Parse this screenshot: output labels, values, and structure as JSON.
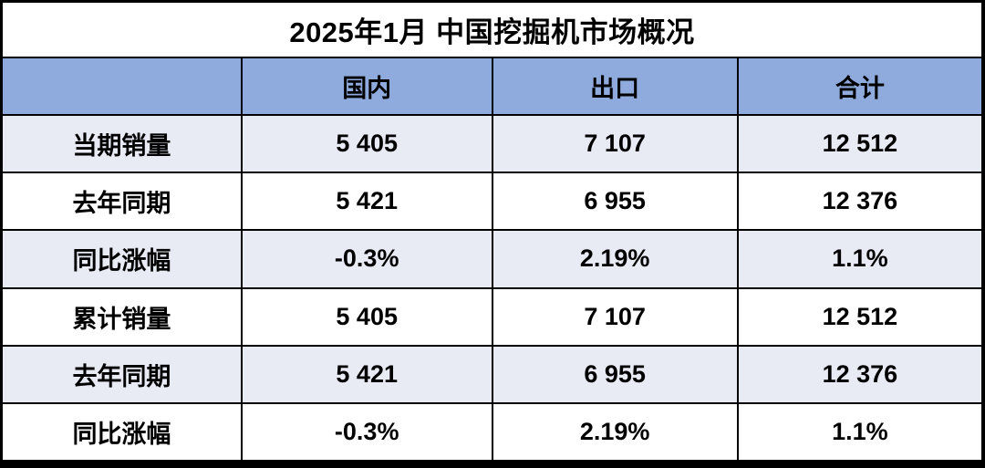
{
  "table": {
    "title": "2025年1月 中国挖掘机市场概况",
    "columns": [
      "国内",
      "出口",
      "合计"
    ],
    "rows": [
      {
        "label": "当期销量",
        "domestic": "5 405",
        "export": "7 107",
        "total": "12 512"
      },
      {
        "label": "去年同期",
        "domestic": "5 421",
        "export": "6 955",
        "total": "12 376"
      },
      {
        "label": "同比涨幅",
        "domestic": "-0.3%",
        "export": "2.19%",
        "total": "1.1%"
      },
      {
        "label": "累计销量",
        "domestic": "5 405",
        "export": "7 107",
        "total": "12 512"
      },
      {
        "label": "去年同期",
        "domestic": "5 421",
        "export": "6 955",
        "total": "12 376"
      },
      {
        "label": "同比涨幅",
        "domestic": "-0.3%",
        "export": "2.19%",
        "total": "1.1%"
      }
    ],
    "colors": {
      "header_bg": "#8FAADC",
      "alt_row_bg": "#E8EAF4",
      "plain_row_bg": "#FFFFFF",
      "grid_border": "#000000",
      "text": "#000000"
    }
  },
  "chart_data": {
    "type": "table",
    "title": "2025年1月 中国挖掘机市场概况",
    "columns": [
      "",
      "国内",
      "出口",
      "合计"
    ],
    "rows": [
      [
        "当期销量",
        "5 405",
        "7 107",
        "12 512"
      ],
      [
        "去年同期",
        "5 421",
        "6 955",
        "12 376"
      ],
      [
        "同比涨幅",
        "-0.3%",
        "2.19%",
        "1.1%"
      ],
      [
        "累计销量",
        "5 405",
        "7 107",
        "12 512"
      ],
      [
        "去年同期",
        "5 421",
        "6 955",
        "12 376"
      ],
      [
        "同比涨幅",
        "-0.3%",
        "2.19%",
        "1.1%"
      ]
    ],
    "numeric": {
      "current_sales": {
        "domestic": 5405,
        "export": 7107,
        "total": 12512
      },
      "last_year_same_period": {
        "domestic": 5421,
        "export": 6955,
        "total": 12376
      },
      "yoy_change_pct": {
        "domestic": -0.3,
        "export": 2.19,
        "total": 1.1
      },
      "cumulative_sales": {
        "domestic": 5405,
        "export": 7107,
        "total": 12512
      },
      "cumulative_last_year": {
        "domestic": 5421,
        "export": 6955,
        "total": 12376
      },
      "cumulative_yoy_pct": {
        "domestic": -0.3,
        "export": 2.19,
        "total": 1.1
      }
    }
  }
}
